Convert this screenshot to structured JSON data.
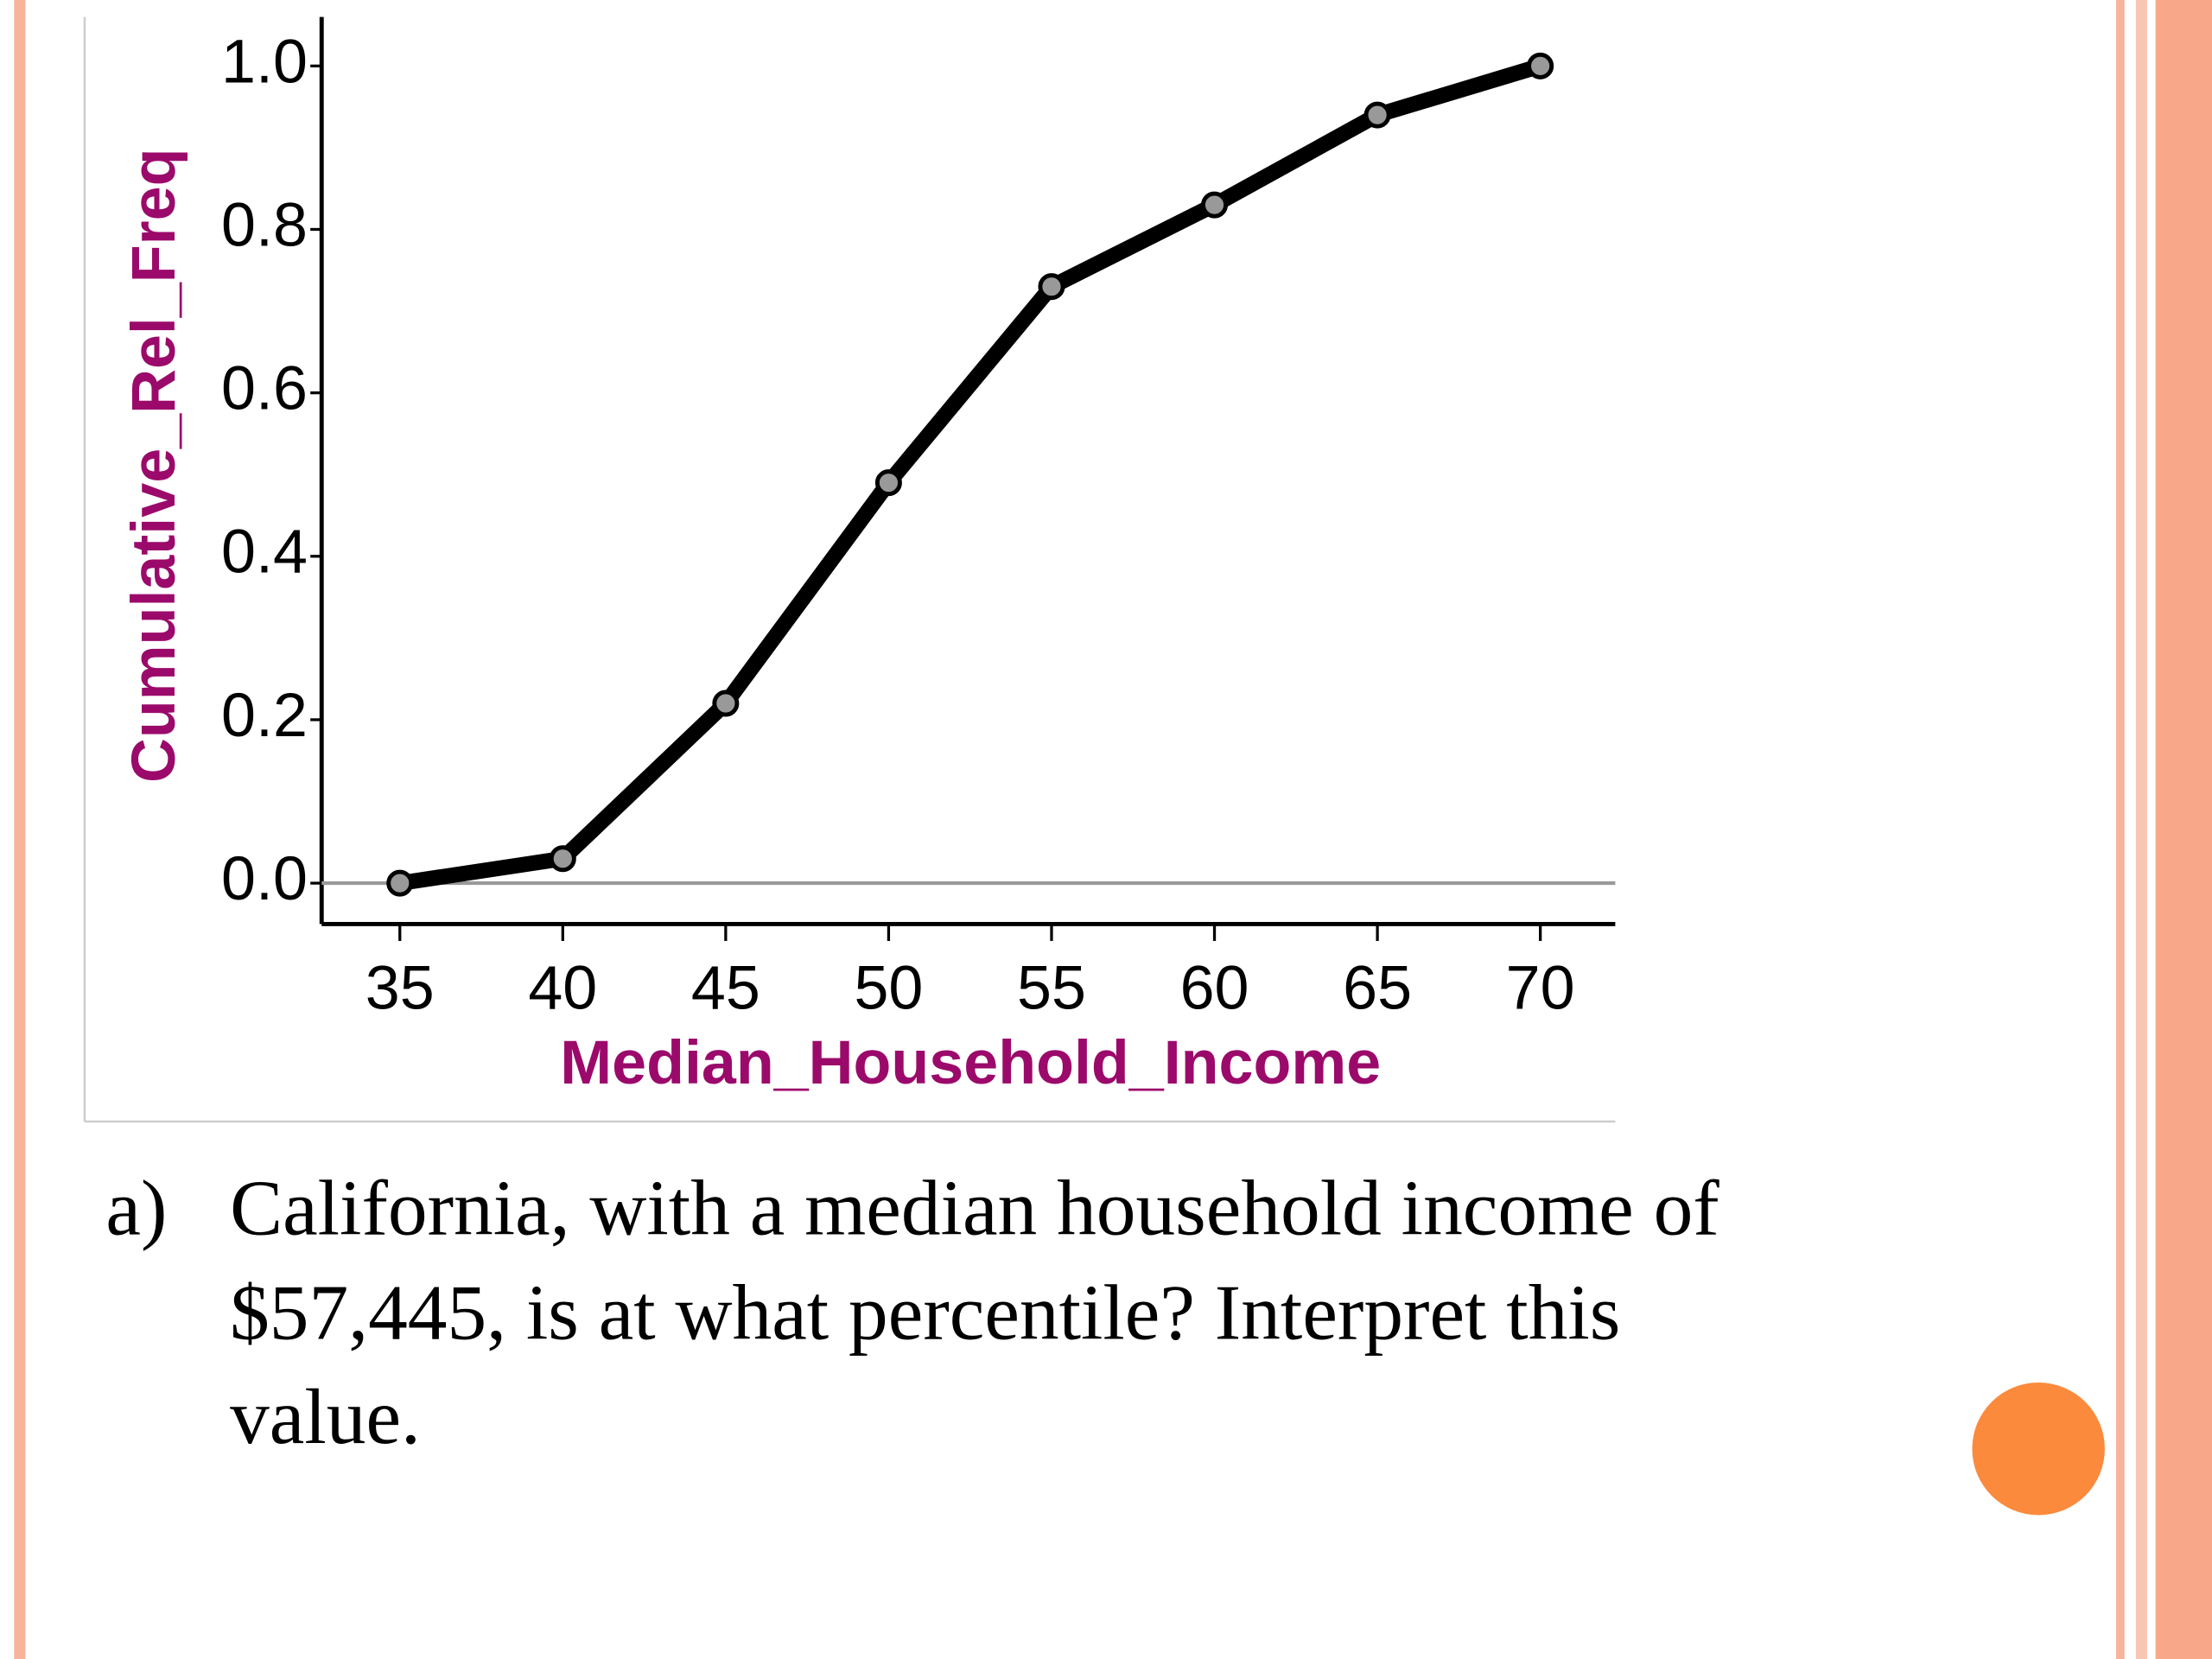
{
  "chart_data": {
    "type": "line",
    "ylabel": "Cumulative_Rel_Freq",
    "xlabel": "Median_Household_Income",
    "x": [
      35,
      40,
      45,
      50,
      55,
      60,
      65,
      70
    ],
    "series": [
      {
        "color": "#000000",
        "values": [
          0.0,
          0.03,
          0.22,
          0.49,
          0.73,
          0.83,
          0.94,
          1.0
        ]
      }
    ],
    "xlim": [
      32.6,
      72.3
    ],
    "xticks": [
      35,
      40,
      45,
      50,
      55,
      60,
      65,
      70
    ],
    "ylim": [
      -0.05,
      1.06
    ],
    "yticks": [
      {
        "value": 0,
        "label": "0.0"
      },
      0.2,
      0.4,
      0.6,
      0.8,
      {
        "value": 1,
        "label": "1.0"
      }
    ]
  },
  "question": {
    "marker": "a)",
    "lines": [
      "California, with a median household income of",
      "$57,445, is at what percentile?  Interpret this",
      "value."
    ]
  }
}
